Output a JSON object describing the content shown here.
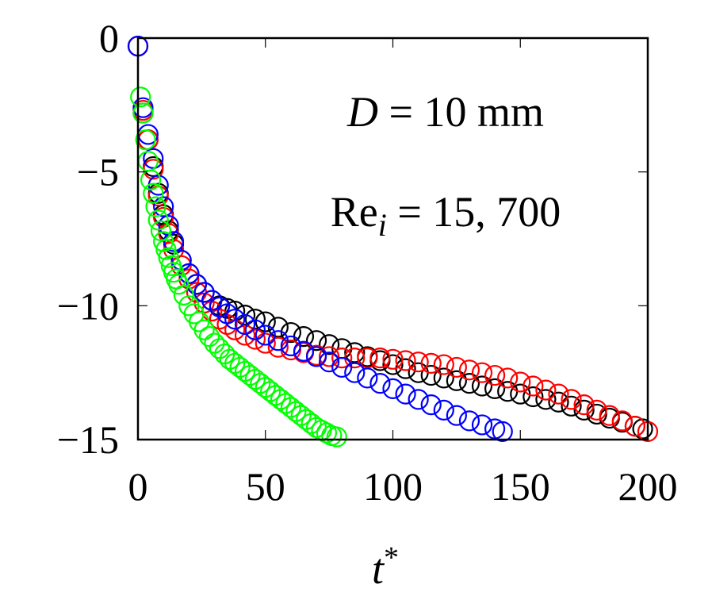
{
  "chart_data": {
    "type": "scatter",
    "title": "",
    "xlabel": "t",
    "xlabel_superscript": "*",
    "ylabel": "",
    "xlim": [
      0,
      200
    ],
    "ylim": [
      -15,
      0
    ],
    "xticks": [
      0,
      50,
      100,
      150,
      200
    ],
    "xtick_labels": [
      "0",
      "50",
      "100",
      "150",
      "200"
    ],
    "yticks": [
      0,
      -5,
      -10,
      -15
    ],
    "ytick_labels": [
      "0",
      "−5",
      "−10",
      "−15"
    ],
    "grid": false,
    "marker": "open-circle",
    "annotations": {
      "line1_var": "D",
      "line1_rest": " = 10 mm",
      "line2_base": "Re",
      "line2_sub": "i",
      "line2_rest": " = 15, 700"
    },
    "colors": {
      "black": "#000000",
      "red": "#ff0000",
      "blue": "#0000ff",
      "green": "#00ff00"
    },
    "series": [
      {
        "color": "#000000",
        "x": [
          0,
          2,
          4,
          6,
          8,
          10,
          12,
          14,
          17,
          20,
          23,
          26,
          29,
          32,
          35,
          38,
          42,
          46,
          50,
          55,
          60,
          65,
          70,
          75,
          80,
          85,
          90,
          95,
          100,
          105,
          110,
          115,
          120,
          125,
          130,
          135,
          140,
          145,
          150,
          155,
          160,
          165,
          170,
          175,
          180,
          185,
          190,
          195,
          198
        ],
        "y": [
          -0.3,
          -2.8,
          -3.8,
          -4.8,
          -5.8,
          -6.6,
          -7.2,
          -7.7,
          -8.3,
          -8.8,
          -9.2,
          -9.5,
          -9.8,
          -10.0,
          -10.1,
          -10.2,
          -10.35,
          -10.5,
          -10.6,
          -10.8,
          -11.0,
          -11.15,
          -11.3,
          -11.45,
          -11.6,
          -11.75,
          -11.9,
          -12.05,
          -12.2,
          -12.35,
          -12.5,
          -12.6,
          -12.7,
          -12.8,
          -12.9,
          -13.0,
          -13.1,
          -13.2,
          -13.3,
          -13.4,
          -13.5,
          -13.6,
          -13.75,
          -13.9,
          -14.05,
          -14.2,
          -14.35,
          -14.5,
          -14.6
        ]
      },
      {
        "color": "#ff0000",
        "x": [
          0,
          2,
          4,
          6,
          8,
          10,
          12,
          14,
          17,
          20,
          23,
          26,
          29,
          32,
          35,
          38,
          42,
          46,
          50,
          55,
          60,
          65,
          70,
          75,
          80,
          85,
          90,
          95,
          100,
          105,
          110,
          115,
          120,
          125,
          130,
          135,
          140,
          145,
          150,
          155,
          160,
          165,
          170,
          175,
          180,
          185,
          190,
          195,
          200
        ],
        "y": [
          -0.3,
          -2.7,
          -3.8,
          -4.9,
          -5.9,
          -6.7,
          -7.3,
          -7.9,
          -8.5,
          -9.0,
          -9.5,
          -9.9,
          -10.2,
          -10.5,
          -10.7,
          -10.9,
          -11.1,
          -11.25,
          -11.4,
          -11.55,
          -11.65,
          -11.75,
          -11.85,
          -11.9,
          -11.95,
          -11.95,
          -11.95,
          -11.95,
          -12.0,
          -12.05,
          -12.1,
          -12.15,
          -12.2,
          -12.3,
          -12.4,
          -12.5,
          -12.6,
          -12.7,
          -12.85,
          -13.0,
          -13.15,
          -13.3,
          -13.5,
          -13.7,
          -13.9,
          -14.1,
          -14.3,
          -14.5,
          -14.7
        ]
      },
      {
        "color": "#0000ff",
        "x": [
          0,
          2,
          4,
          6,
          8,
          10,
          12,
          14,
          17,
          20,
          23,
          26,
          29,
          32,
          35,
          38,
          42,
          46,
          50,
          55,
          60,
          65,
          70,
          75,
          80,
          85,
          90,
          95,
          100,
          105,
          110,
          115,
          120,
          125,
          130,
          135,
          140,
          143
        ],
        "y": [
          -0.3,
          -2.6,
          -3.6,
          -4.5,
          -5.5,
          -6.3,
          -7.0,
          -7.6,
          -8.3,
          -8.8,
          -9.2,
          -9.5,
          -9.8,
          -10.05,
          -10.3,
          -10.5,
          -10.7,
          -10.9,
          -11.1,
          -11.3,
          -11.5,
          -11.7,
          -11.9,
          -12.1,
          -12.3,
          -12.5,
          -12.7,
          -12.9,
          -13.1,
          -13.3,
          -13.5,
          -13.7,
          -13.9,
          -14.1,
          -14.3,
          -14.45,
          -14.6,
          -14.7
        ]
      },
      {
        "color": "#00ff00",
        "x": [
          1,
          2,
          3,
          4,
          5,
          6,
          7,
          8,
          9,
          10,
          11,
          12,
          13,
          14,
          15,
          16,
          18,
          20,
          22,
          24,
          26,
          28,
          30,
          32,
          34,
          36,
          38,
          40,
          42,
          44,
          46,
          48,
          50,
          52,
          54,
          56,
          58,
          60,
          62,
          64,
          66,
          68,
          70,
          72,
          74,
          76,
          78
        ],
        "y": [
          -2.2,
          -2.8,
          -3.8,
          -4.6,
          -5.3,
          -5.8,
          -6.3,
          -6.8,
          -7.2,
          -7.6,
          -7.9,
          -8.2,
          -8.5,
          -8.75,
          -9.0,
          -9.2,
          -9.6,
          -10.0,
          -10.3,
          -10.6,
          -10.9,
          -11.15,
          -11.4,
          -11.6,
          -11.8,
          -12.0,
          -12.15,
          -12.3,
          -12.45,
          -12.6,
          -12.75,
          -12.9,
          -13.05,
          -13.2,
          -13.35,
          -13.5,
          -13.65,
          -13.8,
          -13.95,
          -14.1,
          -14.25,
          -14.4,
          -14.55,
          -14.65,
          -14.75,
          -14.85,
          -14.9
        ]
      }
    ]
  }
}
